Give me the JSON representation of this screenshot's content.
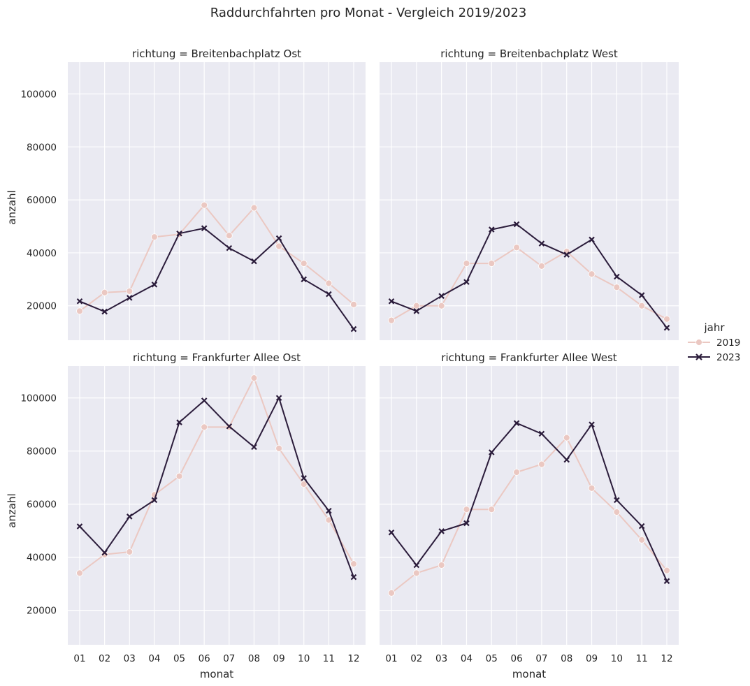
{
  "chart_data": {
    "type": "line",
    "title": "Raddurchfahrten pro Monat - Vergleich 2019/2023",
    "xlabel": "monat",
    "ylabel": "anzahl",
    "categories": [
      "01",
      "02",
      "03",
      "04",
      "05",
      "06",
      "07",
      "08",
      "09",
      "10",
      "11",
      "12"
    ],
    "ylim": [
      7000,
      112000
    ],
    "yticks": [
      20000,
      40000,
      60000,
      80000,
      100000
    ],
    "grid": true,
    "legend": {
      "title": "jahr",
      "placement": "right",
      "entries": [
        {
          "name": "2019",
          "color": "#ebc8c2",
          "marker": "circle"
        },
        {
          "name": "2023",
          "color": "#2b1c3b",
          "marker": "x"
        }
      ]
    },
    "panels": [
      {
        "title": "richtung = Breitenbachplatz Ost",
        "series": [
          {
            "name": "2019",
            "values": [
              18000,
              25000,
              25500,
              46000,
              47000,
              58000,
              46500,
              57000,
              42500,
              36000,
              28500,
              20500
            ]
          },
          {
            "name": "2023",
            "values": [
              21700,
              17800,
              23000,
              28000,
              47300,
              49300,
              41800,
              36800,
              45500,
              30000,
              24400,
              11200
            ]
          }
        ]
      },
      {
        "title": "richtung = Breitenbachplatz West",
        "series": [
          {
            "name": "2019",
            "values": [
              14500,
              20000,
              20000,
              36000,
              36000,
              42000,
              35000,
              40500,
              32000,
              27000,
              20000,
              15000
            ]
          },
          {
            "name": "2023",
            "values": [
              21700,
              18000,
              23700,
              29000,
              48800,
              50800,
              43500,
              39300,
              45000,
              31000,
              24000,
              11700
            ]
          }
        ]
      },
      {
        "title": "richtung = Frankfurter Allee Ost",
        "series": [
          {
            "name": "2019",
            "values": [
              34000,
              41000,
              42000,
              63500,
              70500,
              89000,
              89000,
              107500,
              81000,
              67500,
              54000,
              37500
            ]
          },
          {
            "name": "2023",
            "values": [
              51600,
              41700,
              55300,
              61500,
              90800,
              99000,
              89300,
              81500,
              100000,
              69800,
              57500,
              32500
            ]
          }
        ]
      },
      {
        "title": "richtung = Frankfurter Allee West",
        "series": [
          {
            "name": "2019",
            "values": [
              26500,
              34000,
              37000,
              58000,
              58000,
              72000,
              75000,
              85000,
              66000,
              57000,
              46500,
              35000
            ]
          },
          {
            "name": "2023",
            "values": [
              49300,
              37000,
              49800,
              52800,
              79500,
              90500,
              86500,
              76700,
              90000,
              61500,
              51700,
              31000
            ]
          }
        ]
      }
    ]
  }
}
